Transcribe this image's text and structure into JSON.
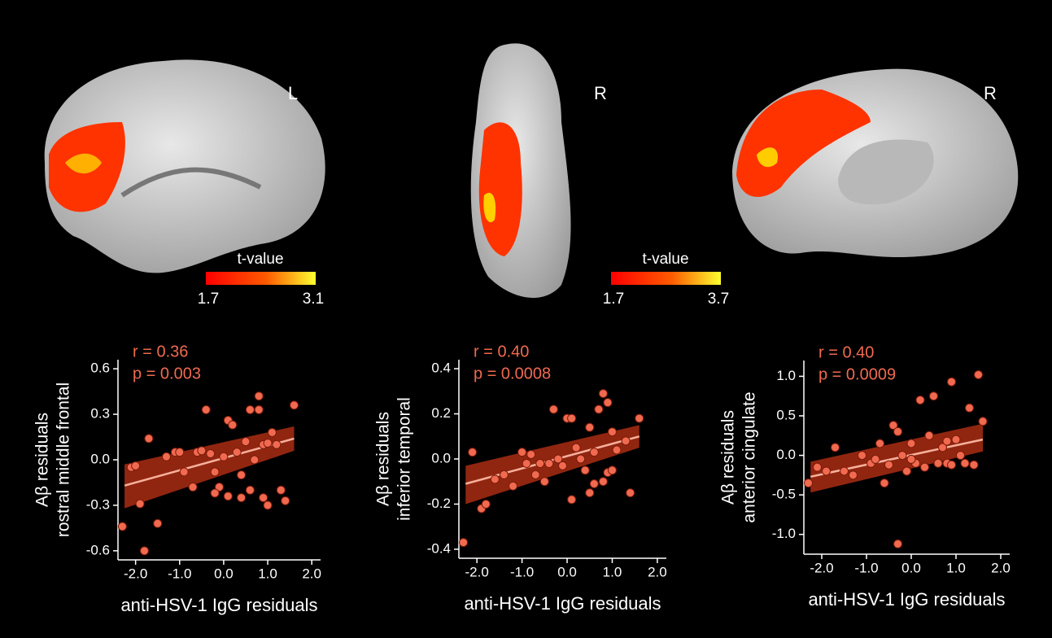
{
  "brain_views": [
    {
      "label": "L"
    },
    {
      "label": "R"
    },
    {
      "label": "R"
    }
  ],
  "colorbars": [
    {
      "title": "t-value",
      "ticks": [
        1.7,
        3.1
      ]
    },
    {
      "title": "t-value",
      "ticks": [
        1.7,
        3.7
      ]
    }
  ],
  "chart_data": [
    {
      "type": "scatter",
      "ylabel": [
        "Aβ residuals",
        "rostral middle frontal"
      ],
      "xlabel": "anti-HSV-1 IgG residuals",
      "annotations": [
        "r = 0.36",
        "p = 0.003"
      ],
      "color": "#f06a50",
      "x": [
        -2.3,
        -2.1,
        -2.0,
        -1.9,
        -1.8,
        -1.7,
        -1.5,
        -1.3,
        -1.1,
        -1.0,
        -0.9,
        -0.7,
        -0.6,
        -0.5,
        -0.4,
        -0.3,
        -0.2,
        -0.1,
        0.0,
        0.1,
        0.1,
        0.2,
        0.3,
        0.4,
        0.5,
        0.6,
        0.6,
        0.7,
        0.8,
        0.8,
        0.9,
        0.9,
        1.0,
        1.0,
        1.1,
        1.2,
        1.3,
        1.4,
        1.6,
        0.4,
        -0.2
      ],
      "values": [
        -0.44,
        -0.05,
        -0.04,
        -0.29,
        -0.6,
        0.14,
        -0.42,
        0.02,
        0.05,
        0.05,
        -0.08,
        -0.18,
        0.05,
        0.06,
        0.33,
        0.04,
        -0.08,
        -0.18,
        0.02,
        0.26,
        -0.24,
        0.23,
        0.05,
        -0.1,
        0.12,
        0.33,
        -0.2,
        0.0,
        0.42,
        0.33,
        0.1,
        -0.25,
        0.11,
        -0.3,
        0.18,
        0.1,
        -0.2,
        -0.27,
        0.36,
        -0.25,
        -0.22
      ],
      "fit": {
        "x": [
          -2.25,
          1.6
        ],
        "y": [
          -0.17,
          0.14
        ],
        "lower": [
          -0.32,
          0.06
        ],
        "upper": [
          -0.03,
          0.22
        ]
      },
      "xlim": [
        -2.4,
        2.2
      ],
      "ylim": [
        -0.66,
        0.66
      ],
      "xticks": [
        {
          "value": -2,
          "label": "-2.0"
        },
        {
          "value": -1,
          "label": "-1.0"
        },
        {
          "value": 0,
          "label": "0.0"
        },
        {
          "value": 1,
          "label": "1.0"
        },
        {
          "value": 2,
          "label": "2.0"
        }
      ],
      "yticks": [
        -0.6,
        -0.3,
        {
          "value": 0,
          "label": "0.0"
        },
        0.3,
        0.6
      ]
    },
    {
      "type": "scatter",
      "ylabel": [
        "Aβ residuals",
        "inferior temporal"
      ],
      "xlabel": "anti-HSV-1 IgG residuals",
      "annotations": [
        "r = 0.40",
        "p = 0.0008"
      ],
      "color": "#f06a50",
      "x": [
        -2.3,
        -2.1,
        -1.9,
        -1.8,
        -1.6,
        -1.4,
        -1.2,
        -1.0,
        -0.9,
        -0.7,
        -0.6,
        -0.5,
        -0.4,
        -0.3,
        -0.2,
        -0.1,
        0.0,
        0.1,
        0.1,
        0.2,
        0.3,
        0.4,
        0.5,
        0.5,
        0.6,
        0.7,
        0.8,
        0.8,
        0.9,
        0.9,
        1.0,
        1.0,
        1.1,
        1.3,
        1.4,
        1.6,
        0.6,
        -0.8
      ],
      "values": [
        -0.37,
        0.03,
        -0.22,
        -0.2,
        -0.09,
        -0.07,
        -0.12,
        0.03,
        -0.02,
        -0.07,
        -0.02,
        -0.1,
        -0.02,
        0.22,
        0.0,
        -0.03,
        0.18,
        0.18,
        -0.18,
        0.05,
        0.0,
        -0.05,
        0.14,
        -0.15,
        0.03,
        0.22,
        0.29,
        -0.1,
        0.25,
        -0.06,
        0.12,
        -0.05,
        0.04,
        0.08,
        -0.15,
        0.18,
        -0.11,
        0.02
      ],
      "fit": {
        "x": [
          -2.25,
          1.6
        ],
        "y": [
          -0.11,
          0.1
        ],
        "lower": [
          -0.2,
          0.05
        ],
        "upper": [
          -0.03,
          0.15
        ]
      },
      "xlim": [
        -2.4,
        2.2
      ],
      "ylim": [
        -0.44,
        0.44
      ],
      "xticks": [
        {
          "value": -2,
          "label": "-2.0"
        },
        {
          "value": -1,
          "label": "-1.0"
        },
        {
          "value": 0,
          "label": "0.0"
        },
        {
          "value": 1,
          "label": "1.0"
        },
        {
          "value": 2,
          "label": "2.0"
        }
      ],
      "yticks": [
        -0.4,
        -0.2,
        {
          "value": 0,
          "label": "0.0"
        },
        0.2,
        0.4
      ]
    },
    {
      "type": "scatter",
      "ylabel": [
        "Aβ residuals",
        "anterior cingulate"
      ],
      "xlabel": "anti-HSV-1 IgG residuals",
      "annotations": [
        "r = 0.40",
        "p = 0.0009"
      ],
      "color": "#f06a50",
      "x": [
        -2.3,
        -2.1,
        -1.9,
        -1.7,
        -1.5,
        -1.3,
        -1.1,
        -0.9,
        -0.7,
        -0.6,
        -0.5,
        -0.4,
        -0.3,
        -0.3,
        -0.2,
        -0.1,
        0.0,
        0.1,
        0.2,
        0.3,
        0.4,
        0.5,
        0.6,
        0.7,
        0.8,
        0.8,
        0.9,
        0.9,
        1.0,
        1.1,
        1.2,
        1.3,
        1.4,
        1.5,
        1.6,
        0.0,
        -0.8
      ],
      "values": [
        -0.35,
        -0.15,
        -0.2,
        0.1,
        -0.2,
        -0.25,
        0.0,
        -0.1,
        0.15,
        -0.35,
        -0.12,
        0.38,
        0.3,
        -1.12,
        0.0,
        -0.2,
        0.15,
        -0.1,
        0.7,
        -0.15,
        0.25,
        0.75,
        -0.1,
        0.1,
        0.18,
        -0.1,
        0.93,
        -0.12,
        0.2,
        0.0,
        -0.1,
        0.6,
        -0.12,
        1.02,
        0.43,
        -0.05,
        -0.05
      ],
      "fit": {
        "x": [
          -2.25,
          1.6
        ],
        "y": [
          -0.27,
          0.2
        ],
        "lower": [
          -0.47,
          0.05
        ],
        "upper": [
          -0.08,
          0.4
        ]
      },
      "xlim": [
        -2.4,
        2.2
      ],
      "ylim": [
        -1.25,
        1.2
      ],
      "xticks": [
        {
          "value": -2,
          "label": "-2.0"
        },
        {
          "value": -1,
          "label": "-1.0"
        },
        {
          "value": 0,
          "label": "0.0"
        },
        {
          "value": 1,
          "label": "1.0"
        },
        {
          "value": 2,
          "label": "2.0"
        }
      ],
      "yticks": [
        {
          "value": -1,
          "label": "-1.0"
        },
        -0.5,
        {
          "value": 0,
          "label": "0.0"
        },
        0.5,
        {
          "value": 1,
          "label": "1.0"
        }
      ]
    }
  ]
}
